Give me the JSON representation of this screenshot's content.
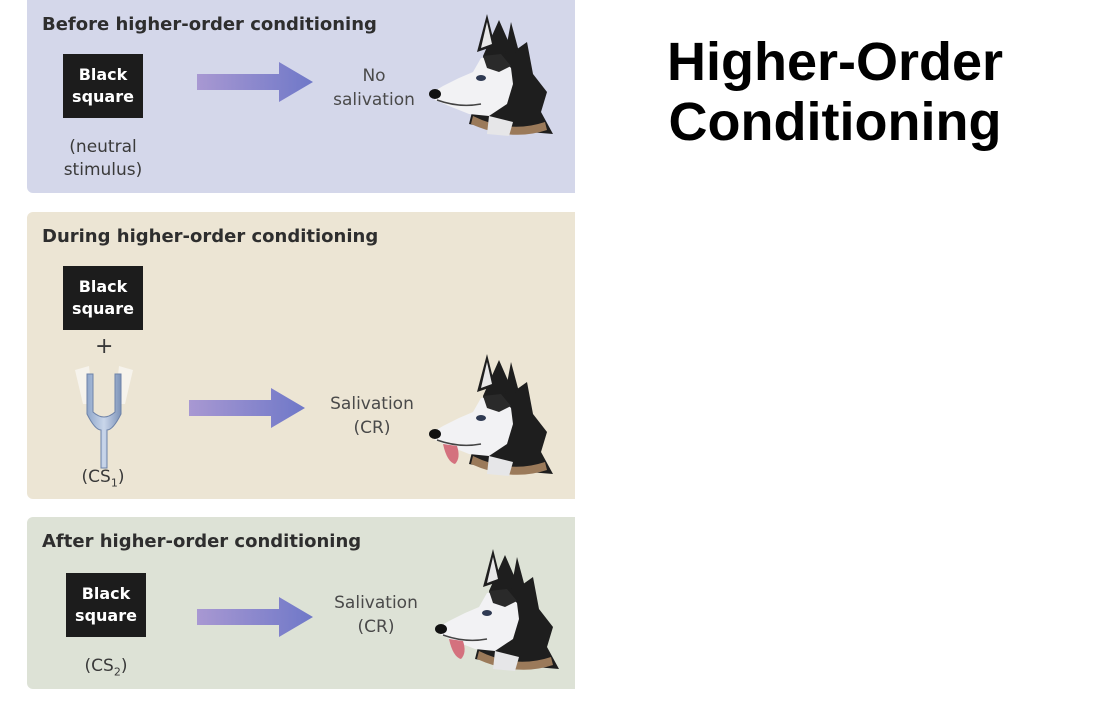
{
  "slide": {
    "title_line1": "Higher-Order",
    "title_line2": "Conditioning"
  },
  "panels": {
    "before": {
      "heading": "Before higher-order conditioning",
      "stimulus_line1": "Black",
      "stimulus_line2": "square",
      "caption_line1": "(neutral",
      "caption_line2": "stimulus)",
      "response_line1": "No",
      "response_line2": "salivation",
      "background": "#d4d7ea"
    },
    "during": {
      "heading": "During higher-order conditioning",
      "stimulus_line1": "Black",
      "stimulus_line2": "square",
      "plus": "+",
      "caption_prefix": "(CS",
      "caption_sub": "1",
      "caption_suffix": ")",
      "response_line1": "Salivation",
      "response_line2": "(CR)",
      "background": "#ece5d4"
    },
    "after": {
      "heading": "After higher-order conditioning",
      "stimulus_line1": "Black",
      "stimulus_line2": "square",
      "caption_prefix": "(CS",
      "caption_sub": "2",
      "caption_suffix": ")",
      "response_line1": "Salivation",
      "response_line2": "(CR)",
      "background": "#dde2d6"
    }
  },
  "icons": {
    "arrow": "right-arrow-icon",
    "dog": "husky-dog-icon",
    "tuning_fork": "tuning-fork-icon"
  },
  "colors": {
    "arrow_start": "#9b8fcf",
    "arrow_end": "#6a72c2",
    "stimulus_box": "#1c1c1c"
  }
}
